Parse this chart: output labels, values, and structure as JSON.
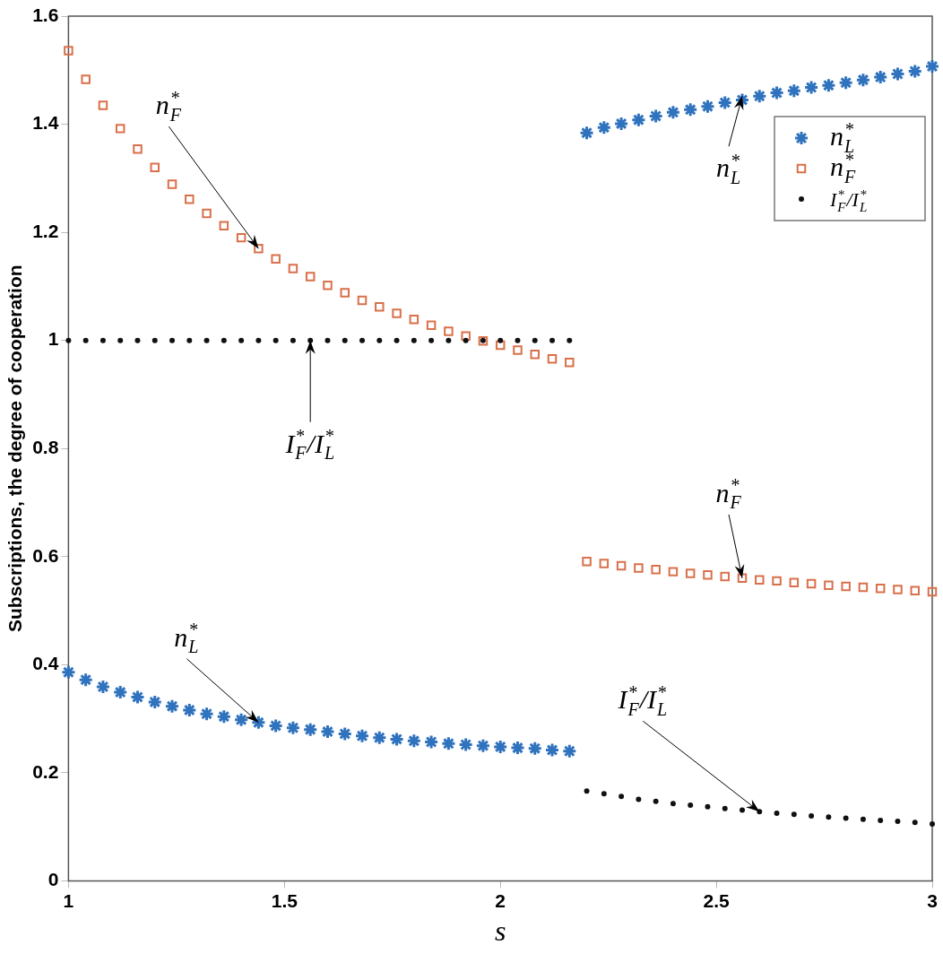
{
  "chart_data": {
    "type": "scatter",
    "xlabel": "s",
    "ylabel": "Subscriptions, the degree of cooperation",
    "xlim": [
      1,
      3
    ],
    "xticks": [
      1,
      1.5,
      2,
      2.5,
      3
    ],
    "ylim": [
      0,
      1.6
    ],
    "yticks": [
      0,
      0.2,
      0.4,
      0.6,
      0.8,
      1,
      1.2,
      1.4,
      1.6
    ],
    "grid": false,
    "legend": "top right",
    "series": [
      {
        "name": "n$^{*}$$_{L}$",
        "color": "#2f72bd",
        "marker": "cross",
        "x": [
          1,
          1.04,
          1.08,
          1.12,
          1.16,
          1.2,
          1.24,
          1.28,
          1.32,
          1.36,
          1.4,
          1.44,
          1.48,
          1.52,
          1.56,
          1.6,
          1.64,
          1.68,
          1.72,
          1.76,
          1.8,
          1.84,
          1.88,
          1.92,
          1.96,
          2,
          2.04,
          2.08,
          2.12,
          2.16,
          null,
          2.2,
          2.24,
          2.28,
          2.32,
          2.36,
          2.4,
          2.44,
          2.48,
          2.52,
          2.56,
          2.6,
          2.64,
          2.68,
          2.72,
          2.76,
          2.8,
          2.84,
          2.88,
          2.92,
          2.96,
          3
        ],
        "values": [
          0.386,
          0.372,
          0.359,
          0.349,
          0.34,
          0.331,
          0.323,
          0.316,
          0.309,
          0.304,
          0.298,
          0.293,
          0.287,
          0.283,
          0.28,
          0.276,
          0.272,
          0.268,
          0.265,
          0.262,
          0.259,
          0.257,
          0.254,
          0.252,
          0.25,
          0.248,
          0.246,
          0.245,
          0.242,
          0.24,
          null,
          1.384,
          1.394,
          1.401,
          1.408,
          1.415,
          1.422,
          1.427,
          1.433,
          1.44,
          1.445,
          1.452,
          1.458,
          1.462,
          1.468,
          1.472,
          1.477,
          1.482,
          1.487,
          1.493,
          1.498,
          1.507
        ]
      },
      {
        "name": "n$^{*}$$_{F}$",
        "color": "#d9704a",
        "marker": "square",
        "x": [
          1,
          1.04,
          1.08,
          1.12,
          1.16,
          1.2,
          1.24,
          1.28,
          1.32,
          1.36,
          1.4,
          1.44,
          1.48,
          1.52,
          1.56,
          1.6,
          1.64,
          1.68,
          1.72,
          1.76,
          1.8,
          1.84,
          1.88,
          1.92,
          1.96,
          2,
          2.04,
          2.08,
          2.12,
          2.16,
          null,
          2.2,
          2.24,
          2.28,
          2.32,
          2.36,
          2.4,
          2.44,
          2.48,
          2.52,
          2.56,
          2.6,
          2.64,
          2.68,
          2.72,
          2.76,
          2.8,
          2.84,
          2.88,
          2.92,
          2.96,
          3
        ],
        "values": [
          1.536,
          1.483,
          1.435,
          1.392,
          1.354,
          1.32,
          1.289,
          1.261,
          1.235,
          1.212,
          1.19,
          1.17,
          1.151,
          1.133,
          1.118,
          1.102,
          1.088,
          1.074,
          1.062,
          1.05,
          1.039,
          1.028,
          1.017,
          1.008,
          0.999,
          0.991,
          0.982,
          0.974,
          0.966,
          0.959,
          null,
          0.591,
          0.587,
          0.583,
          0.579,
          0.576,
          0.572,
          0.569,
          0.566,
          0.563,
          0.56,
          0.557,
          0.555,
          0.552,
          0.55,
          0.547,
          0.545,
          0.543,
          0.541,
          0.539,
          0.537,
          0.535
        ]
      },
      {
        "name": "I$^{*}$$_{F}$/I$^{*}$$_{L}$",
        "color": "#111111",
        "marker": "circle",
        "x": [
          1,
          1.04,
          1.08,
          1.12,
          1.16,
          1.2,
          1.24,
          1.28,
          1.32,
          1.36,
          1.4,
          1.44,
          1.48,
          1.52,
          1.56,
          1.6,
          1.64,
          1.68,
          1.72,
          1.76,
          1.8,
          1.84,
          1.88,
          1.92,
          1.96,
          2,
          2.04,
          2.08,
          2.12,
          2.16,
          null,
          2.2,
          2.24,
          2.28,
          2.32,
          2.36,
          2.4,
          2.44,
          2.48,
          2.52,
          2.56,
          2.6,
          2.64,
          2.68,
          2.72,
          2.76,
          2.8,
          2.84,
          2.88,
          2.92,
          2.96,
          3
        ],
        "values": [
          1,
          1,
          1,
          1,
          1,
          1,
          1,
          1,
          1,
          1,
          1,
          1,
          1,
          1,
          1,
          1,
          1,
          1,
          1,
          1,
          1,
          1,
          1,
          1,
          1,
          1,
          1,
          1,
          1,
          1,
          null,
          0.166,
          0.161,
          0.156,
          0.151,
          0.147,
          0.143,
          0.14,
          0.137,
          0.134,
          0.131,
          0.128,
          0.125,
          0.123,
          0.12,
          0.118,
          0.116,
          0.114,
          0.112,
          0.11,
          0.108,
          0.105
        ]
      }
    ],
    "annotations": [
      {
        "text": "n$^{*}$$_{F}$",
        "x": 1.44,
        "y": 1.17
      },
      {
        "text": "I$^{*}$$_{F}$/I$^{*}$$_{L}$",
        "x": 1.56,
        "y": 1
      },
      {
        "text": "n$^{*}$$_{L}$",
        "x": 1.44,
        "y": 0.293
      },
      {
        "text": "n$^{*}$$_{L}$",
        "x": 2.56,
        "y": 1.452
      },
      {
        "text": "n$^{*}$$_{F}$",
        "x": 2.56,
        "y": 0.56
      },
      {
        "text": "I$^{*}$$_{F}$/I$^{*}$$_{L}$",
        "x": 2.6,
        "y": 0.128
      }
    ]
  }
}
